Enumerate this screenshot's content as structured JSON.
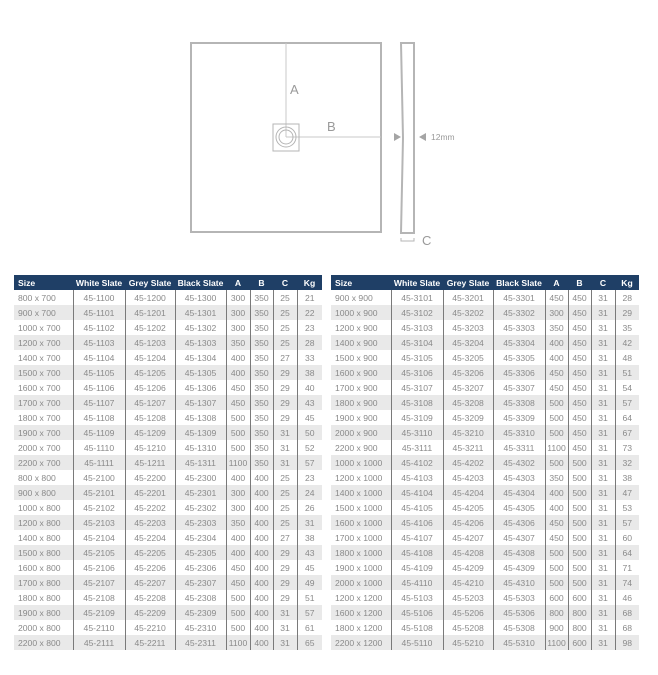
{
  "diagram": {
    "label_a": "A",
    "label_b": "B",
    "label_c": "C",
    "thickness": "12mm"
  },
  "colors": {
    "header": "#1f3f66",
    "row_alt": "#e9e9e9",
    "text": "#8a8a8a"
  },
  "columns": [
    "Size",
    "White Slate",
    "Grey Slate",
    "Black Slate",
    "A",
    "B",
    "C",
    "Kg"
  ],
  "left_table": [
    [
      "800 x 700",
      "45-1100",
      "45-1200",
      "45-1300",
      "300",
      "350",
      "25",
      "21"
    ],
    [
      "900 x 700",
      "45-1101",
      "45-1201",
      "45-1301",
      "300",
      "350",
      "25",
      "22"
    ],
    [
      "1000 x 700",
      "45-1102",
      "45-1202",
      "45-1302",
      "300",
      "350",
      "25",
      "23"
    ],
    [
      "1200 x 700",
      "45-1103",
      "45-1203",
      "45-1303",
      "350",
      "350",
      "25",
      "28"
    ],
    [
      "1400 x 700",
      "45-1104",
      "45-1204",
      "45-1304",
      "400",
      "350",
      "27",
      "33"
    ],
    [
      "1500 x 700",
      "45-1105",
      "45-1205",
      "45-1305",
      "400",
      "350",
      "29",
      "38"
    ],
    [
      "1600 x 700",
      "45-1106",
      "45-1206",
      "45-1306",
      "450",
      "350",
      "29",
      "40"
    ],
    [
      "1700 x 700",
      "45-1107",
      "45-1207",
      "45-1307",
      "450",
      "350",
      "29",
      "43"
    ],
    [
      "1800 x 700",
      "45-1108",
      "45-1208",
      "45-1308",
      "500",
      "350",
      "29",
      "45"
    ],
    [
      "1900 x 700",
      "45-1109",
      "45-1209",
      "45-1309",
      "500",
      "350",
      "31",
      "50"
    ],
    [
      "2000 x 700",
      "45-1110",
      "45-1210",
      "45-1310",
      "500",
      "350",
      "31",
      "52"
    ],
    [
      "2200 x 700",
      "45-1111",
      "45-1211",
      "45-1311",
      "1100",
      "350",
      "31",
      "57"
    ],
    [
      "800 x 800",
      "45-2100",
      "45-2200",
      "45-2300",
      "400",
      "400",
      "25",
      "23"
    ],
    [
      "900 x 800",
      "45-2101",
      "45-2201",
      "45-2301",
      "300",
      "400",
      "25",
      "24"
    ],
    [
      "1000 x 800",
      "45-2102",
      "45-2202",
      "45-2302",
      "300",
      "400",
      "25",
      "26"
    ],
    [
      "1200 x 800",
      "45-2103",
      "45-2203",
      "45-2303",
      "350",
      "400",
      "25",
      "31"
    ],
    [
      "1400 x 800",
      "45-2104",
      "45-2204",
      "45-2304",
      "400",
      "400",
      "27",
      "38"
    ],
    [
      "1500 x 800",
      "45-2105",
      "45-2205",
      "45-2305",
      "400",
      "400",
      "29",
      "43"
    ],
    [
      "1600 x 800",
      "45-2106",
      "45-2206",
      "45-2306",
      "450",
      "400",
      "29",
      "45"
    ],
    [
      "1700 x 800",
      "45-2107",
      "45-2207",
      "45-2307",
      "450",
      "400",
      "29",
      "49"
    ],
    [
      "1800 x 800",
      "45-2108",
      "45-2208",
      "45-2308",
      "500",
      "400",
      "29",
      "51"
    ],
    [
      "1900 x 800",
      "45-2109",
      "45-2209",
      "45-2309",
      "500",
      "400",
      "31",
      "57"
    ],
    [
      "2000 x 800",
      "45-2110",
      "45-2210",
      "45-2310",
      "500",
      "400",
      "31",
      "61"
    ],
    [
      "2200 x 800",
      "45-2111",
      "45-2211",
      "45-2311",
      "1100",
      "400",
      "31",
      "65"
    ]
  ],
  "right_table": [
    [
      "900 x 900",
      "45-3101",
      "45-3201",
      "45-3301",
      "450",
      "450",
      "31",
      "28"
    ],
    [
      "1000 x 900",
      "45-3102",
      "45-3202",
      "45-3302",
      "300",
      "450",
      "31",
      "29"
    ],
    [
      "1200 x 900",
      "45-3103",
      "45-3203",
      "45-3303",
      "350",
      "450",
      "31",
      "35"
    ],
    [
      "1400 x 900",
      "45-3104",
      "45-3204",
      "45-3304",
      "400",
      "450",
      "31",
      "42"
    ],
    [
      "1500 x 900",
      "45-3105",
      "45-3205",
      "45-3305",
      "400",
      "450",
      "31",
      "48"
    ],
    [
      "1600 x 900",
      "45-3106",
      "45-3206",
      "45-3306",
      "450",
      "450",
      "31",
      "51"
    ],
    [
      "1700 x 900",
      "45-3107",
      "45-3207",
      "45-3307",
      "450",
      "450",
      "31",
      "54"
    ],
    [
      "1800 x 900",
      "45-3108",
      "45-3208",
      "45-3308",
      "500",
      "450",
      "31",
      "57"
    ],
    [
      "1900 x 900",
      "45-3109",
      "45-3209",
      "45-3309",
      "500",
      "450",
      "31",
      "64"
    ],
    [
      "2000 x 900",
      "45-3110",
      "45-3210",
      "45-3310",
      "500",
      "450",
      "31",
      "67"
    ],
    [
      "2200 x 900",
      "45-3111",
      "45-3211",
      "45-3311",
      "1100",
      "450",
      "31",
      "73"
    ],
    [
      "1000 x 1000",
      "45-4102",
      "45-4202",
      "45-4302",
      "500",
      "500",
      "31",
      "32"
    ],
    [
      "1200 x 1000",
      "45-4103",
      "45-4203",
      "45-4303",
      "350",
      "500",
      "31",
      "38"
    ],
    [
      "1400 x 1000",
      "45-4104",
      "45-4204",
      "45-4304",
      "400",
      "500",
      "31",
      "47"
    ],
    [
      "1500 x 1000",
      "45-4105",
      "45-4205",
      "45-4305",
      "400",
      "500",
      "31",
      "53"
    ],
    [
      "1600 x 1000",
      "45-4106",
      "45-4206",
      "45-4306",
      "450",
      "500",
      "31",
      "57"
    ],
    [
      "1700 x 1000",
      "45-4107",
      "45-4207",
      "45-4307",
      "450",
      "500",
      "31",
      "60"
    ],
    [
      "1800 x 1000",
      "45-4108",
      "45-4208",
      "45-4308",
      "500",
      "500",
      "31",
      "64"
    ],
    [
      "1900 x 1000",
      "45-4109",
      "45-4209",
      "45-4309",
      "500",
      "500",
      "31",
      "71"
    ],
    [
      "2000 x 1000",
      "45-4110",
      "45-4210",
      "45-4310",
      "500",
      "500",
      "31",
      "74"
    ],
    [
      "1200 x 1200",
      "45-5103",
      "45-5203",
      "45-5303",
      "600",
      "600",
      "31",
      "46"
    ],
    [
      "1600 x 1200",
      "45-5106",
      "45-5206",
      "45-5306",
      "800",
      "800",
      "31",
      "68"
    ],
    [
      "1800 x 1200",
      "45-5108",
      "45-5208",
      "45-5308",
      "900",
      "800",
      "31",
      "68"
    ],
    [
      "2200 x 1200",
      "45-5110",
      "45-5210",
      "45-5310",
      "1100",
      "600",
      "31",
      "98"
    ]
  ]
}
